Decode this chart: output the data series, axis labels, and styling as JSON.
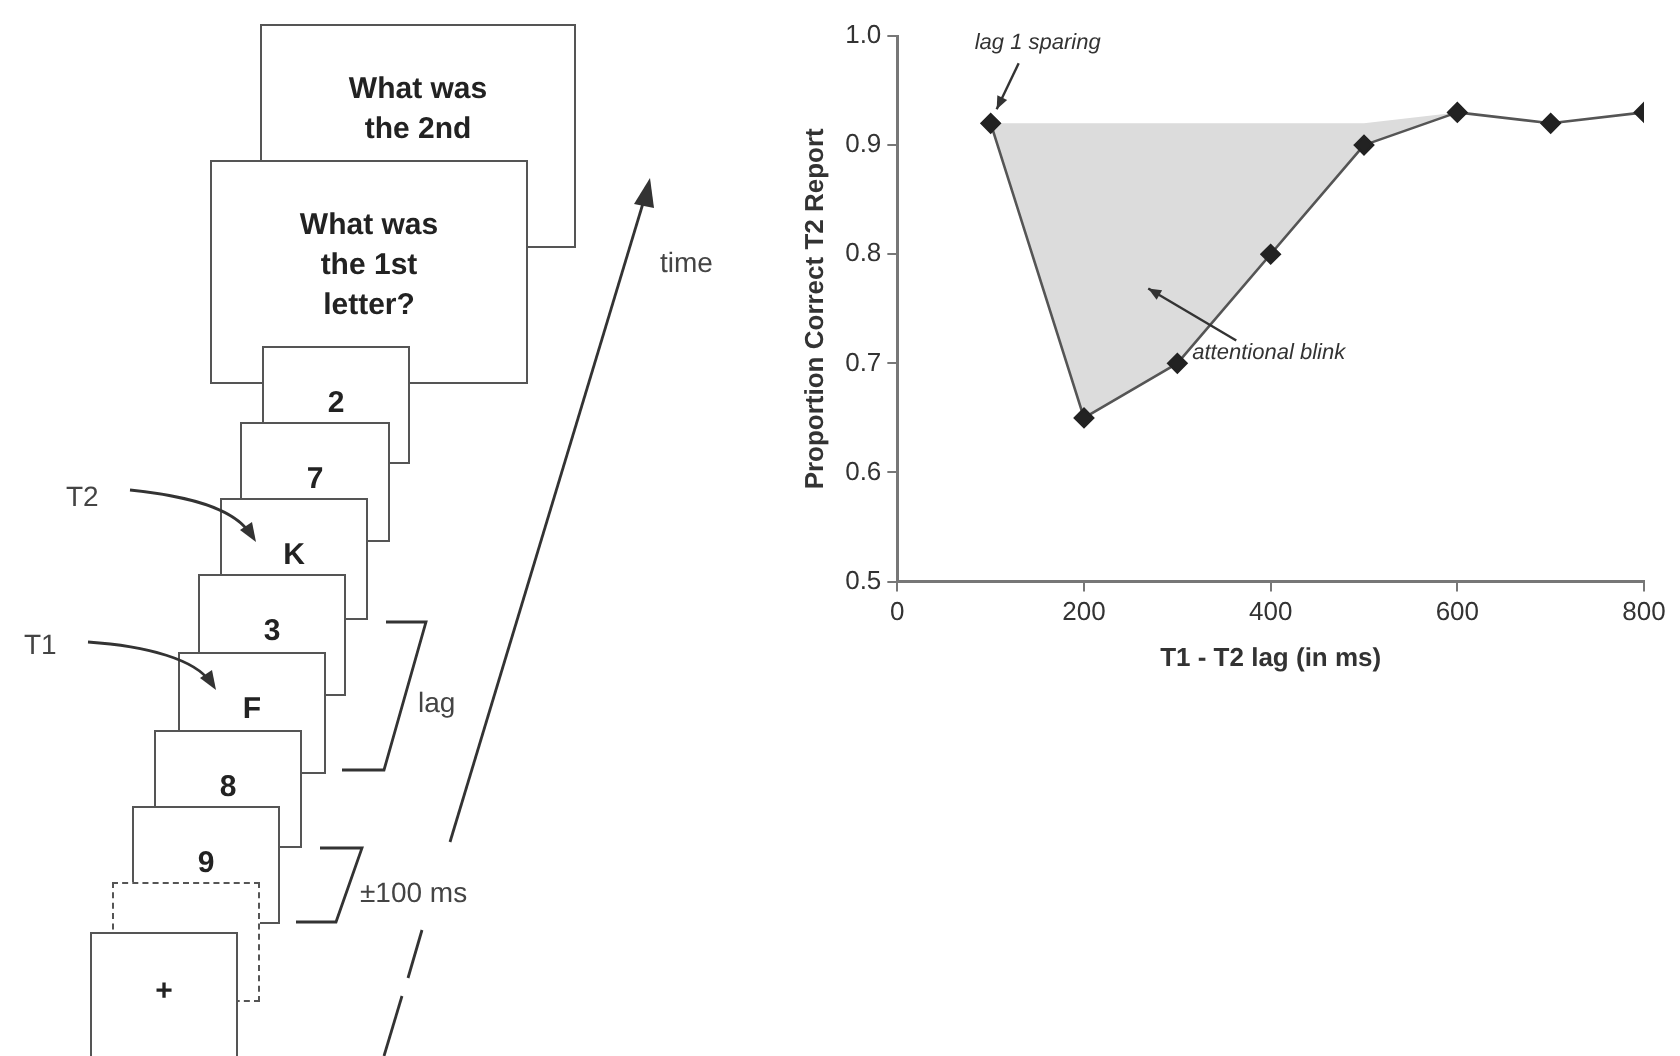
{
  "chart_data": {
    "type": "line",
    "xlabel": "T1 - T2 lag (in ms)",
    "ylabel": "Proportion Correct T2 Report",
    "xlim": [
      0,
      800
    ],
    "xticks": [
      0,
      200,
      400,
      600,
      800
    ],
    "ylim": [
      0.5,
      1.0
    ],
    "yticks": [
      0.5,
      0.6,
      0.7,
      0.8,
      0.9,
      {
        "value": 1.0,
        "label": "1.0"
      }
    ],
    "grid": false,
    "legend": false,
    "marker": "diamond",
    "line_style": "solid",
    "series": [
      {
        "color": "#555555",
        "x": [
          100,
          200,
          300,
          400,
          500,
          600,
          700,
          800
        ],
        "values": [
          0.92,
          0.65,
          0.7,
          0.8,
          0.9,
          0.93,
          0.92,
          0.93
        ],
        "lower": [
          0.92,
          0.65,
          0.7,
          0.8,
          0.9,
          0.93,
          0.92,
          0.93
        ],
        "upper": [
          0.92,
          0.92,
          0.92,
          0.92,
          0.92,
          0.93,
          0.92,
          0.93
        ]
      }
    ],
    "annotations": [
      {
        "text": "lag 1 sparing",
        "x": 100,
        "y": 0.92
      },
      "attentional blink",
      "What was the 2nd",
      "What was the 1st letter?",
      "2",
      "7",
      "K",
      "3",
      "F",
      "8",
      "9",
      "+",
      "T2",
      "T1",
      "lag",
      "±100 ms",
      "time"
    ]
  }
}
